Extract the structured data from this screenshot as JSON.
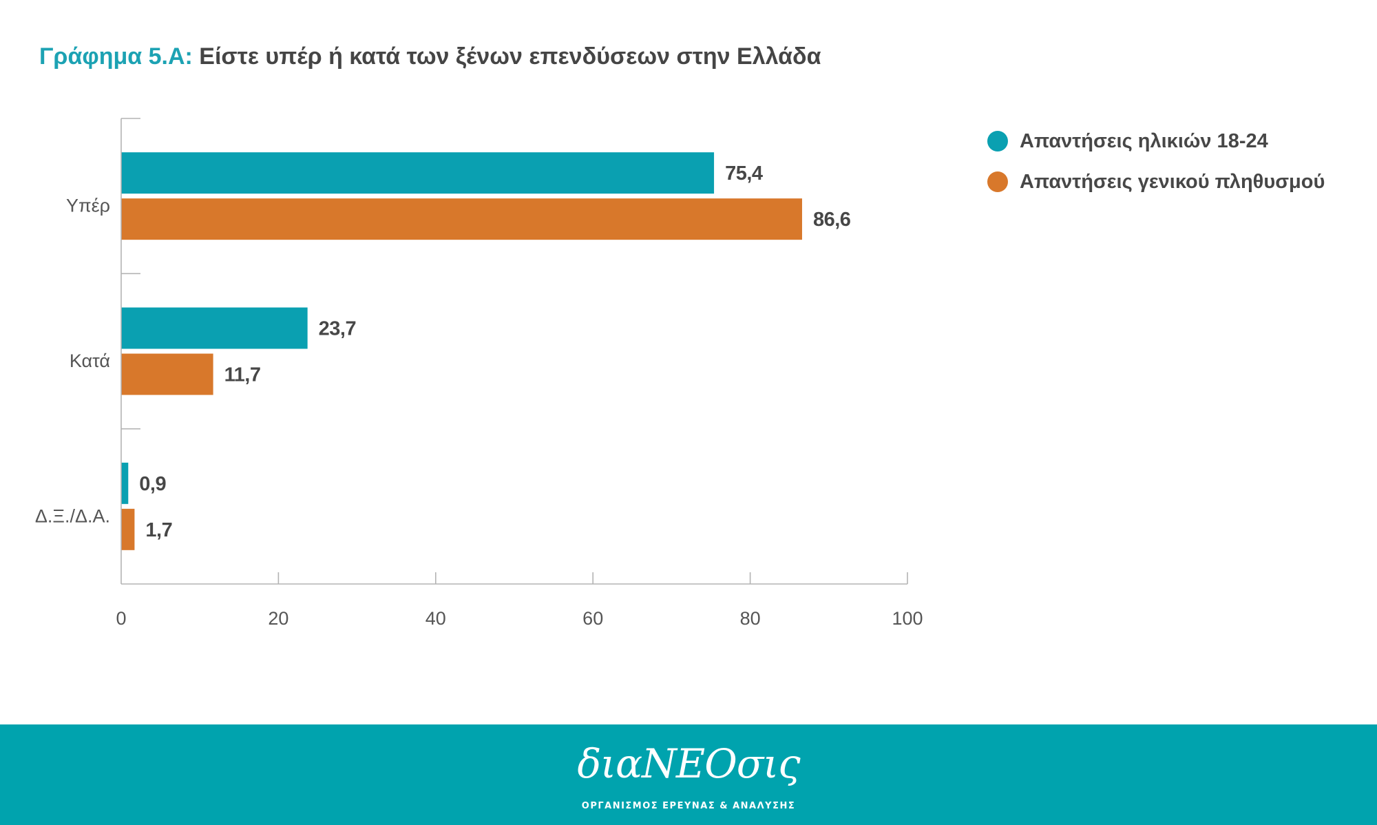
{
  "chart_data": {
    "type": "bar",
    "orientation": "horizontal",
    "title_prefix": "Γράφημα 5.Α:",
    "title": "Είστε υπέρ ή κατά των ξένων επενδύσεων στην Ελλάδα",
    "categories": [
      "Υπέρ",
      "Κατά",
      "Δ.Ξ./Δ.Α."
    ],
    "series": [
      {
        "name": "Απαντήσεις ηλικιών 18-24",
        "values": [
          75.4,
          23.7,
          0.9
        ],
        "labels": [
          "75,4",
          "23,7",
          "0,9"
        ],
        "color": "#0aa0b1"
      },
      {
        "name": "Απαντήσεις γενικού πληθυσμού",
        "values": [
          86.6,
          11.7,
          1.7
        ],
        "labels": [
          "86,6",
          "11,7",
          "1,7"
        ],
        "color": "#d8782b"
      }
    ],
    "xlim": [
      0,
      100
    ],
    "xticks": [
      0,
      20,
      40,
      60,
      80,
      100
    ],
    "grid": false,
    "legend": "top-right"
  },
  "colors": {
    "accent": "#1ca2b3",
    "text": "#454545",
    "footer": "#00a3ae"
  },
  "footer": {
    "logo": "διαΝΕΟσις",
    "tagline": "ΟΡΓΑΝΙΣΜΟΣ ΕΡΕΥΝΑΣ & ΑΝΑΛΥΣΗΣ"
  }
}
